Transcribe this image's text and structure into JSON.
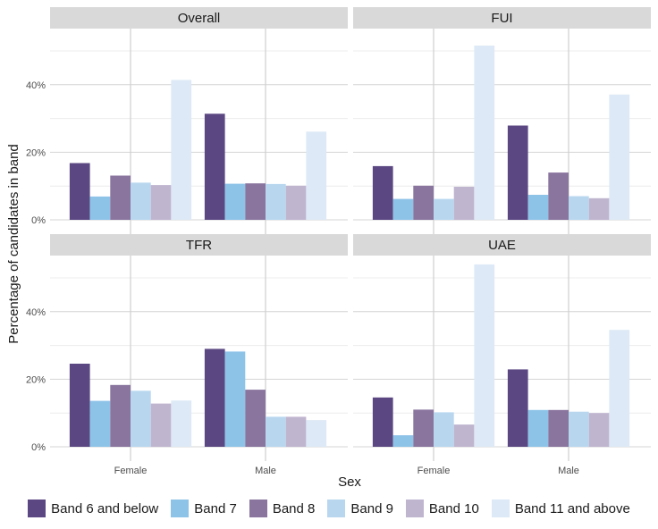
{
  "chart_data": {
    "type": "bar",
    "ylabel": "Percentage of candidates in band",
    "xlabel": "Sex",
    "categories": [
      "Female",
      "Male"
    ],
    "yticks": [
      "0%",
      "20%",
      "40%"
    ],
    "ylim": [
      0,
      55
    ],
    "grid": true,
    "legend_position": "bottom",
    "bands": [
      "Band 6 and below",
      "Band 7",
      "Band 8",
      "Band 9",
      "Band 10",
      "Band 11 and above"
    ],
    "colors": [
      "#5b4782",
      "#8ec3e8",
      "#8a759f",
      "#b8d7ef",
      "#c0b5cf",
      "#dde9f6"
    ],
    "panels": [
      {
        "title": "Overall",
        "series": [
          {
            "name": "Band 6 and below",
            "values": [
              16.8,
              31.4
            ]
          },
          {
            "name": "Band 7",
            "values": [
              6.9,
              10.7
            ]
          },
          {
            "name": "Band 8",
            "values": [
              13.1,
              10.8
            ]
          },
          {
            "name": "Band 9",
            "values": [
              11.0,
              10.6
            ]
          },
          {
            "name": "Band 10",
            "values": [
              10.3,
              10.1
            ]
          },
          {
            "name": "Band 11 and above",
            "values": [
              41.4,
              26.1
            ]
          }
        ]
      },
      {
        "title": "FUI",
        "series": [
          {
            "name": "Band 6 and below",
            "values": [
              15.9,
              27.9
            ]
          },
          {
            "name": "Band 7",
            "values": [
              6.2,
              7.4
            ]
          },
          {
            "name": "Band 8",
            "values": [
              10.1,
              14.0
            ]
          },
          {
            "name": "Band 9",
            "values": [
              6.2,
              7.0
            ]
          },
          {
            "name": "Band 10",
            "values": [
              9.8,
              6.4
            ]
          },
          {
            "name": "Band 11 and above",
            "values": [
              51.6,
              37.1
            ]
          }
        ]
      },
      {
        "title": "TFR",
        "series": [
          {
            "name": "Band 6 and below",
            "values": [
              24.6,
              29.0
            ]
          },
          {
            "name": "Band 7",
            "values": [
              13.6,
              28.2
            ]
          },
          {
            "name": "Band 8",
            "values": [
              18.3,
              16.9
            ]
          },
          {
            "name": "Band 9",
            "values": [
              16.6,
              8.9
            ]
          },
          {
            "name": "Band 10",
            "values": [
              12.8,
              8.9
            ]
          },
          {
            "name": "Band 11 and above",
            "values": [
              13.7,
              7.9
            ]
          }
        ]
      },
      {
        "title": "UAE",
        "series": [
          {
            "name": "Band 6 and below",
            "values": [
              14.6,
              22.9
            ]
          },
          {
            "name": "Band 7",
            "values": [
              3.4,
              10.9
            ]
          },
          {
            "name": "Band 8",
            "values": [
              11.0,
              10.9
            ]
          },
          {
            "name": "Band 9",
            "values": [
              10.2,
              10.4
            ]
          },
          {
            "name": "Band 10",
            "values": [
              6.6,
              10.0
            ]
          },
          {
            "name": "Band 11 and above",
            "values": [
              54.0,
              34.6
            ]
          }
        ]
      }
    ]
  }
}
